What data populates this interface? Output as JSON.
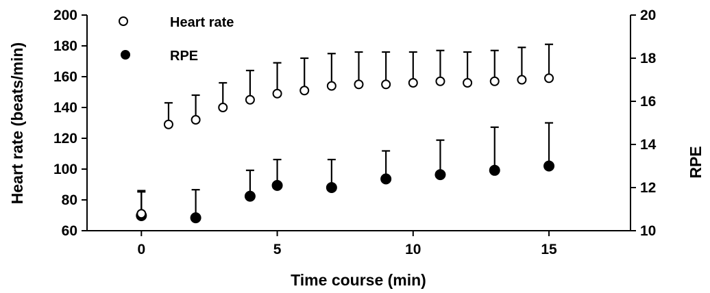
{
  "chart_data": {
    "type": "scatter",
    "xlabel": "Time course (min)",
    "ylabel": "Heart rate (beats/min)",
    "y2label": "RPE",
    "xlim": [
      -2,
      18
    ],
    "ylim": [
      60,
      200
    ],
    "y2lim": [
      10,
      20
    ],
    "x_ticks": [
      0,
      5,
      10,
      15
    ],
    "x_tick_labels": [
      "0",
      "5",
      "10",
      "15"
    ],
    "y_ticks": [
      60,
      80,
      100,
      120,
      140,
      160,
      180,
      200
    ],
    "y_tick_labels": [
      "60",
      "80",
      "100",
      "120",
      "140",
      "160",
      "180",
      "200"
    ],
    "y2_ticks": [
      10,
      12,
      14,
      16,
      18,
      20
    ],
    "y2_tick_labels": [
      "10",
      "12",
      "14",
      "16",
      "18",
      "20"
    ],
    "legend_position": "top-left",
    "grid": false,
    "series": [
      {
        "name": "Heart rate",
        "axis": "left",
        "marker": "open-circle",
        "color": "#000000",
        "points": [
          {
            "x": 1,
            "y": 129,
            "err_upper": 143
          },
          {
            "x": 2,
            "y": 132,
            "err_upper": 148
          },
          {
            "x": 3,
            "y": 140,
            "err_upper": 156
          },
          {
            "x": 4,
            "y": 145,
            "err_upper": 164
          },
          {
            "x": 5,
            "y": 149,
            "err_upper": 169
          },
          {
            "x": 6,
            "y": 151,
            "err_upper": 172
          },
          {
            "x": 7,
            "y": 154,
            "err_upper": 175
          },
          {
            "x": 8,
            "y": 155,
            "err_upper": 176
          },
          {
            "x": 9,
            "y": 155,
            "err_upper": 176
          },
          {
            "x": 10,
            "y": 156,
            "err_upper": 176
          },
          {
            "x": 11,
            "y": 157,
            "err_upper": 177
          },
          {
            "x": 12,
            "y": 156,
            "err_upper": 176
          },
          {
            "x": 13,
            "y": 157,
            "err_upper": 177
          },
          {
            "x": 14,
            "y": 158,
            "err_upper": 179
          },
          {
            "x": 15,
            "y": 159,
            "err_upper": 181
          }
        ]
      },
      {
        "name": "RPE",
        "axis": "right",
        "marker": "filled-circle",
        "color": "#000000",
        "points": [
          {
            "x": 0,
            "y": 10.7,
            "err_upper": 11.8
          },
          {
            "x": 2,
            "y": 10.6,
            "err_upper": 11.9
          },
          {
            "x": 4,
            "y": 11.6,
            "err_upper": 12.8
          },
          {
            "x": 5,
            "y": 12.1,
            "err_upper": 13.3
          },
          {
            "x": 7,
            "y": 12.0,
            "err_upper": 13.3
          },
          {
            "x": 9,
            "y": 12.4,
            "err_upper": 13.7
          },
          {
            "x": 11,
            "y": 12.6,
            "err_upper": 14.2
          },
          {
            "x": 13,
            "y": 12.8,
            "err_upper": 14.8
          },
          {
            "x": 15,
            "y": 13.0,
            "err_upper": 15.0
          }
        ]
      }
    ],
    "annotations": [
      {
        "x": 0,
        "y": 71,
        "axis": "left",
        "marker": "open-circle",
        "note": "time 0 open marker"
      }
    ]
  }
}
